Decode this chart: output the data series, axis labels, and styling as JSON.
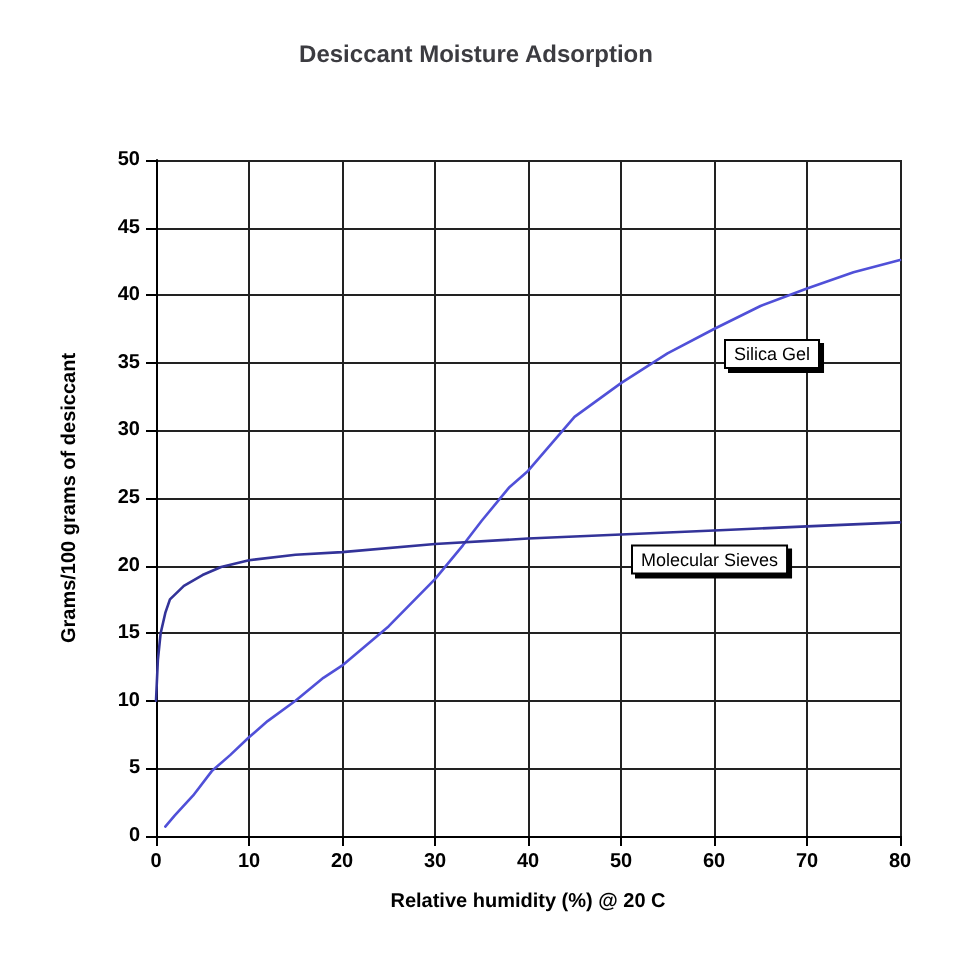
{
  "chart_data": {
    "type": "line",
    "title": "Desiccant Moisture Adsorption",
    "xlabel": "Relative humidity (%) @ 20 C",
    "ylabel": "Grams/100 grams of desiccant",
    "series": [
      {
        "name": "Silica Gel",
        "color": "#5050d8",
        "x": [
          1,
          2,
          4,
          6,
          8,
          10,
          12,
          15,
          18,
          20,
          25,
          30,
          33,
          35,
          38,
          40,
          45,
          50,
          55,
          60,
          65,
          70,
          75,
          80
        ],
        "values": [
          0.7,
          1.5,
          3,
          4.8,
          6,
          7.3,
          8.5,
          10,
          11.7,
          12.6,
          15.5,
          19,
          21.5,
          23.3,
          25.8,
          27,
          31,
          33.5,
          35.7,
          37.5,
          39.2,
          40.5,
          41.7,
          42.6
        ]
      },
      {
        "name": "Molecular Sieves",
        "color": "#333399",
        "x": [
          0,
          0.2,
          0.5,
          1,
          1.5,
          3,
          5,
          7,
          10,
          15,
          20,
          30,
          40,
          50,
          60,
          70,
          80
        ],
        "values": [
          10,
          13,
          15,
          16.5,
          17.5,
          18.5,
          19.3,
          19.9,
          20.4,
          20.8,
          21,
          21.6,
          22,
          22.3,
          22.6,
          22.9,
          23.2
        ]
      }
    ],
    "xlim": [
      0,
      80
    ],
    "xticks": [
      0,
      10,
      20,
      30,
      40,
      50,
      60,
      70,
      80
    ],
    "ylim": [
      0,
      50
    ],
    "yticks": [
      0,
      5,
      10,
      15,
      20,
      25,
      30,
      35,
      40,
      45,
      50
    ],
    "grid": true,
    "marker": "none",
    "line_style": "solid"
  }
}
